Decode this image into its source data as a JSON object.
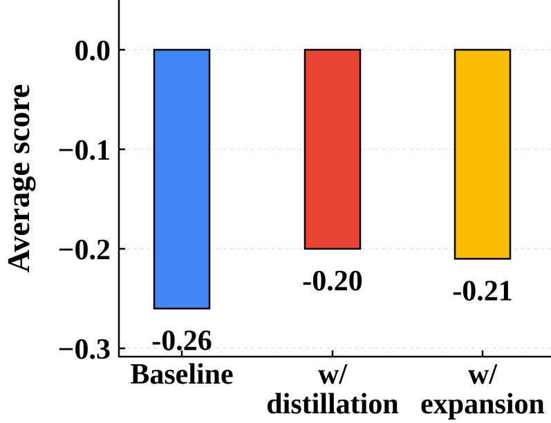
{
  "chart_data": {
    "type": "bar",
    "title": "",
    "xlabel": "",
    "ylabel": "Average score",
    "categories": [
      [
        "Baseline"
      ],
      [
        "w/",
        "distillation"
      ],
      [
        "w/",
        "expansion"
      ]
    ],
    "values": [
      -0.26,
      -0.2,
      -0.21
    ],
    "value_labels": [
      "-0.26",
      "-0.20",
      "-0.21"
    ],
    "colors": [
      "#4285F4",
      "#EA4335",
      "#FBBC04"
    ],
    "edge_color": "#000000",
    "yticks": [
      0.0,
      -0.1,
      -0.2,
      -0.3
    ],
    "ytick_labels": [
      "0.0",
      "−0.1",
      "−0.2",
      "−0.3"
    ],
    "ylim": [
      -0.305,
      0.05
    ],
    "grid": "horizontal dashed",
    "legend": "none"
  }
}
